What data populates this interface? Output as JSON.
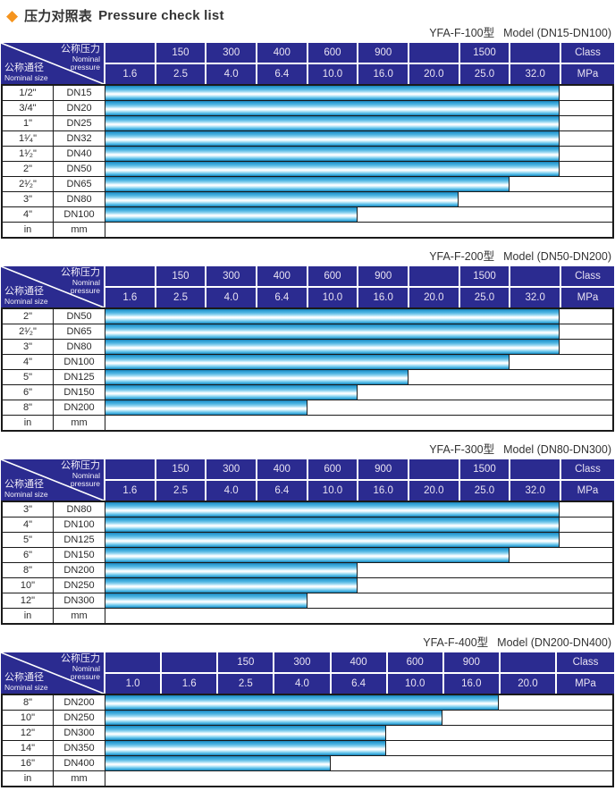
{
  "title": {
    "diamond": "◆",
    "zh": "压力对照表",
    "en": "Pressure check list"
  },
  "corner": {
    "pressure_zh": "公称压力",
    "pressure_en_1": "Nominal",
    "pressure_en_2": "pressure",
    "size_zh": "公称通径",
    "size_en": "Nominal size"
  },
  "colors": {
    "header_bg": "#2b2b90",
    "header_text": "#e8e2f2",
    "diamond_orange": "#f5941e",
    "bar_blue": "#2f9fd4",
    "bar_highlight": "#ffffff",
    "grid_border": "#1a1a1a"
  },
  "tables": [
    {
      "model": "YFA-F-100型",
      "range": "Model (DN15-DN100)",
      "pressure_cols": 9,
      "class_row": [
        "",
        "150",
        "300",
        "400",
        "600",
        "900",
        "",
        "1500",
        "",
        "Class"
      ],
      "mpa_row": [
        "1.6",
        "2.5",
        "4.0",
        "6.4",
        "10.0",
        "16.0",
        "20.0",
        "25.0",
        "32.0",
        "MPa"
      ],
      "rows": [
        {
          "size": "1/2\"",
          "dn": "DN15",
          "bar": 9
        },
        {
          "size": "3/4\"",
          "dn": "DN20",
          "bar": 9
        },
        {
          "size": "1\"",
          "dn": "DN25",
          "bar": 9
        },
        {
          "size": "1¹⁄₄\"",
          "dn": "DN32",
          "bar": 9
        },
        {
          "size": "1¹⁄₂\"",
          "dn": "DN40",
          "bar": 9
        },
        {
          "size": "2\"",
          "dn": "DN50",
          "bar": 9
        },
        {
          "size": "2¹⁄₂\"",
          "dn": "DN65",
          "bar": 8
        },
        {
          "size": "3\"",
          "dn": "DN80",
          "bar": 7
        },
        {
          "size": "4\"",
          "dn": "DN100",
          "bar": 5
        }
      ],
      "unit_row": {
        "size": "in",
        "dn": "mm"
      }
    },
    {
      "model": "YFA-F-200型",
      "range": "Model (DN50-DN200)",
      "pressure_cols": 9,
      "class_row": [
        "",
        "150",
        "300",
        "400",
        "600",
        "900",
        "",
        "1500",
        "",
        "Class"
      ],
      "mpa_row": [
        "1.6",
        "2.5",
        "4.0",
        "6.4",
        "10.0",
        "16.0",
        "20.0",
        "25.0",
        "32.0",
        "MPa"
      ],
      "rows": [
        {
          "size": "2\"",
          "dn": "DN50",
          "bar": 9
        },
        {
          "size": "2¹⁄₂\"",
          "dn": "DN65",
          "bar": 9
        },
        {
          "size": "3\"",
          "dn": "DN80",
          "bar": 9
        },
        {
          "size": "4\"",
          "dn": "DN100",
          "bar": 8
        },
        {
          "size": "5\"",
          "dn": "DN125",
          "bar": 6
        },
        {
          "size": "6\"",
          "dn": "DN150",
          "bar": 5
        },
        {
          "size": "8\"",
          "dn": "DN200",
          "bar": 4
        }
      ],
      "unit_row": {
        "size": "in",
        "dn": "mm"
      }
    },
    {
      "model": "YFA-F-300型",
      "range": "Model (DN80-DN300)",
      "pressure_cols": 9,
      "class_row": [
        "",
        "150",
        "300",
        "400",
        "600",
        "900",
        "",
        "1500",
        "",
        "Class"
      ],
      "mpa_row": [
        "1.6",
        "2.5",
        "4.0",
        "6.4",
        "10.0",
        "16.0",
        "20.0",
        "25.0",
        "32.0",
        "MPa"
      ],
      "rows": [
        {
          "size": "3\"",
          "dn": "DN80",
          "bar": 9
        },
        {
          "size": "4\"",
          "dn": "DN100",
          "bar": 9
        },
        {
          "size": "5\"",
          "dn": "DN125",
          "bar": 9
        },
        {
          "size": "6\"",
          "dn": "DN150",
          "bar": 8
        },
        {
          "size": "8\"",
          "dn": "DN200",
          "bar": 5
        },
        {
          "size": "10\"",
          "dn": "DN250",
          "bar": 5
        },
        {
          "size": "12\"",
          "dn": "DN300",
          "bar": 4
        }
      ],
      "unit_row": {
        "size": "in",
        "dn": "mm"
      }
    },
    {
      "model": "YFA-F-400型",
      "range": "Model (DN200-DN400)",
      "pressure_cols": 8,
      "class_row": [
        "",
        "",
        "150",
        "300",
        "400",
        "600",
        "900",
        "",
        "Class"
      ],
      "mpa_row": [
        "1.0",
        "1.6",
        "2.5",
        "4.0",
        "6.4",
        "10.0",
        "16.0",
        "20.0",
        "MPa"
      ],
      "rows": [
        {
          "size": "8\"",
          "dn": "DN200",
          "bar": 7
        },
        {
          "size": "10\"",
          "dn": "DN250",
          "bar": 6
        },
        {
          "size": "12\"",
          "dn": "DN300",
          "bar": 5
        },
        {
          "size": "14\"",
          "dn": "DN350",
          "bar": 5
        },
        {
          "size": "16\"",
          "dn": "DN400",
          "bar": 4
        }
      ],
      "unit_row": {
        "size": "in",
        "dn": "mm"
      }
    }
  ]
}
